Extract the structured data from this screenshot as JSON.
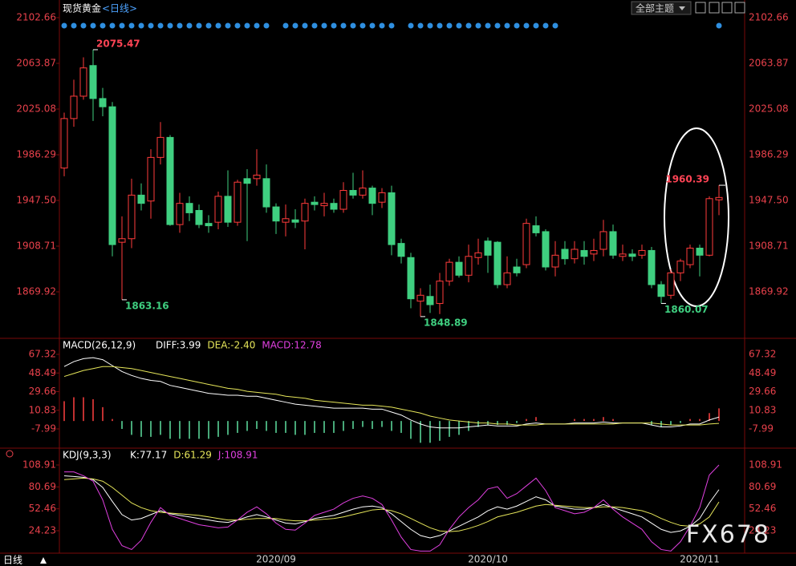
{
  "ui": {
    "theme_button": "全部主题",
    "period_button": "日线",
    "watermark": "FX678"
  },
  "chart_data": [
    {
      "type": "candlestick",
      "title": "现货黄金",
      "period": "<日线>",
      "categories": [
        null,
        null,
        null,
        null,
        null,
        null,
        null,
        null,
        null,
        null,
        null,
        null,
        null,
        null,
        null,
        null,
        null,
        null,
        null,
        null,
        null,
        null,
        "2020/09",
        null,
        null,
        null,
        null,
        null,
        null,
        null,
        null,
        null,
        null,
        null,
        null,
        null,
        null,
        null,
        null,
        null,
        null,
        null,
        null,
        null,
        "2020/10",
        null,
        null,
        null,
        null,
        null,
        null,
        null,
        null,
        null,
        null,
        null,
        null,
        null,
        null,
        null,
        null,
        null,
        null,
        null,
        null,
        null,
        "2020/11",
        null,
        null
      ],
      "open": [
        1975,
        2017,
        2036,
        2062,
        2034,
        2027,
        1912,
        1915,
        1952,
        1947,
        1984,
        2001,
        1927,
        1945,
        1939,
        1928,
        1929,
        1951,
        1929,
        1966,
        1966,
        1966,
        1942,
        1929,
        1931,
        1930,
        1946,
        1943,
        1945,
        1940,
        1956,
        1952,
        1958,
        1946,
        1954,
        1911,
        1899,
        1862,
        1866,
        1860,
        1879,
        1895,
        1884,
        1899,
        1913,
        1912,
        1876,
        1891,
        1893,
        1926,
        1921,
        1891,
        1906,
        1898,
        1905,
        1902,
        1906,
        1921,
        1900,
        1902,
        1901,
        1905,
        1876,
        1867,
        1886,
        1893,
        1907,
        1901,
        1948
      ],
      "high": [
        2022,
        2050,
        2069,
        2075.47,
        2043,
        2031,
        1934,
        1966,
        1962,
        1991,
        2014,
        2003,
        1954,
        1951,
        1944,
        1935,
        1955,
        1973,
        1965,
        1974,
        1991,
        1978,
        1945,
        1944,
        1940,
        1949,
        1951,
        1954,
        1949,
        1963,
        1971,
        1973,
        1960,
        1958,
        1960,
        1915,
        1903,
        1873,
        1876,
        1886,
        1898,
        1900,
        1910,
        1915,
        1916,
        1913,
        1900,
        1898,
        1932,
        1934,
        1923,
        1913,
        1913,
        1913,
        1913,
        1915,
        1931,
        1927,
        1910,
        1906,
        1910,
        1908,
        1879,
        1889,
        1898,
        1910,
        1910,
        1951,
        1960.39
      ],
      "low": [
        1968,
        2010,
        2033,
        2015,
        2019,
        1900,
        1863.16,
        1907,
        1939,
        1932,
        1978,
        1926,
        1920,
        1930,
        1924,
        1920,
        1923,
        1925,
        1926,
        1913,
        1960,
        1937,
        1919,
        1917,
        1924,
        1906,
        1939,
        1934,
        1937,
        1937,
        1949,
        1949,
        1935,
        1941,
        1901,
        1894,
        1856,
        1848.89,
        1852,
        1851,
        1875,
        1882,
        1878,
        1893,
        1886,
        1873,
        1873,
        1883,
        1890,
        1917,
        1888,
        1883,
        1893,
        1894,
        1893,
        1896,
        1900,
        1898,
        1896,
        1896,
        1898,
        1873,
        1860.07,
        1864,
        1879,
        1890,
        1883,
        1900,
        1935
      ],
      "close": [
        2017,
        2036,
        2060,
        2034,
        2027,
        1910,
        1915,
        1952,
        1945,
        1984,
        2001,
        1927,
        1945,
        1937,
        1927,
        1926,
        1951,
        1929,
        1963,
        1962,
        1969,
        1942,
        1930,
        1932,
        1929,
        1945,
        1944,
        1945,
        1940,
        1956,
        1952,
        1958,
        1945,
        1954,
        1910,
        1900,
        1864,
        1867,
        1859,
        1879,
        1895,
        1884,
        1900,
        1903,
        1901,
        1876,
        1886,
        1886,
        1928,
        1920,
        1891,
        1901,
        1898,
        1906,
        1900,
        1905,
        1921,
        1901,
        1902,
        1900,
        1905,
        1876,
        1866,
        1886,
        1896,
        1907,
        1901,
        1949,
        1950
      ],
      "up_color": "#ff3b3b",
      "down_color": "#3fcf80",
      "ylim": [
        1831.8,
        2112.2
      ],
      "yticks": [
        1869.92,
        1908.71,
        {
          "value": 1947.5,
          "label": "1947.50"
        },
        1986.29,
        2025.08,
        2063.87,
        2102.66
      ]
    },
    {
      "type": "macd",
      "title": "MACD(26,12,9)",
      "series": [
        {
          "name": "DIFF:3.99",
          "color": "#ffffff",
          "values": [
            55,
            60,
            63,
            64,
            62,
            56,
            50,
            46,
            43,
            41,
            40,
            36,
            34,
            32,
            30,
            28,
            27,
            26,
            26,
            25,
            25,
            23,
            21,
            19,
            17,
            16,
            15,
            14,
            13,
            13,
            13,
            13,
            12,
            12,
            9,
            6,
            1,
            -3,
            -6,
            -7,
            -7,
            -7,
            -6,
            -5,
            -4,
            -5,
            -5,
            -5,
            -3,
            -2,
            -3,
            -3,
            -3,
            -2,
            -2,
            -2,
            -1,
            -2,
            -2,
            -2,
            -2,
            -4,
            -6,
            -6,
            -5,
            -3,
            -3,
            1,
            3.99
          ]
        },
        {
          "name": "DEA:-2.40",
          "color": "#e6e65a",
          "values": [
            45,
            48,
            51,
            53,
            55,
            55,
            54,
            53,
            51,
            49,
            47,
            45,
            43,
            41,
            39,
            37,
            35,
            33,
            32,
            30,
            29,
            28,
            27,
            25,
            24,
            23,
            21,
            20,
            19,
            18,
            17,
            16,
            16,
            15,
            14,
            12,
            10,
            8,
            5,
            3,
            1,
            0,
            -1,
            -2,
            -2,
            -3,
            -3,
            -4,
            -4,
            -4,
            -3,
            -3,
            -3,
            -3,
            -3,
            -3,
            -3,
            -3,
            -2,
            -2,
            -2,
            -2,
            -3,
            -4,
            -4,
            -4,
            -4,
            -3,
            -2.4
          ]
        },
        {
          "name": "MACD:12.78",
          "type": "bar",
          "color": "#e040e0",
          "up_color": "#ff4040",
          "down_color": "#5fe0a0",
          "values": [
            20,
            24,
            24,
            22,
            14,
            2,
            -8,
            -14,
            -16,
            -16,
            -14,
            -18,
            -18,
            -18,
            -18,
            -18,
            -16,
            -14,
            -12,
            -10,
            -8,
            -10,
            -12,
            -12,
            -14,
            -14,
            -12,
            -12,
            -12,
            -10,
            -8,
            -6,
            -8,
            -6,
            -10,
            -12,
            -18,
            -22,
            -22,
            -20,
            -16,
            -14,
            -10,
            -6,
            -4,
            -4,
            -4,
            -2,
            2,
            4,
            0,
            0,
            0,
            2,
            2,
            2,
            4,
            2,
            0,
            0,
            0,
            -4,
            -6,
            -4,
            -2,
            2,
            2,
            8,
            12.78
          ]
        }
      ],
      "ylim": [
        -25.8,
        81.1
      ],
      "yticks": [
        -7.99,
        10.83,
        29.66,
        48.49,
        67.32
      ]
    },
    {
      "type": "kdj",
      "title": "KDJ(9,3,3)",
      "series": [
        {
          "name": "K:77.17",
          "color": "#ffffff",
          "values": [
            95,
            94,
            93,
            90,
            80,
            62,
            45,
            38,
            40,
            45,
            50,
            46,
            44,
            42,
            40,
            38,
            36,
            35,
            38,
            42,
            45,
            42,
            38,
            34,
            33,
            36,
            40,
            42,
            44,
            48,
            52,
            55,
            56,
            54,
            46,
            36,
            26,
            18,
            15,
            18,
            24,
            30,
            36,
            42,
            50,
            55,
            52,
            56,
            62,
            68,
            64,
            56,
            54,
            52,
            52,
            54,
            58,
            54,
            50,
            46,
            42,
            34,
            26,
            22,
            24,
            30,
            40,
            60,
            77.17
          ]
        },
        {
          "name": "D:61.29",
          "color": "#e6e65a",
          "values": [
            90,
            91,
            92,
            91,
            88,
            80,
            70,
            60,
            54,
            50,
            48,
            47,
            46,
            45,
            44,
            42,
            40,
            38,
            38,
            39,
            40,
            40,
            40,
            38,
            37,
            37,
            38,
            39,
            40,
            42,
            45,
            48,
            51,
            52,
            50,
            46,
            40,
            34,
            28,
            24,
            23,
            24,
            27,
            31,
            36,
            42,
            45,
            48,
            52,
            56,
            58,
            57,
            56,
            55,
            54,
            54,
            55,
            55,
            54,
            52,
            50,
            46,
            40,
            35,
            31,
            30,
            33,
            42,
            61.29
          ]
        },
        {
          "name": "J:108.91",
          "color": "#e040e0",
          "values": [
            100,
            100,
            95,
            88,
            64,
            26,
            5,
            0,
            12,
            35,
            54,
            44,
            40,
            36,
            32,
            30,
            28,
            29,
            38,
            48,
            55,
            46,
            34,
            26,
            25,
            34,
            44,
            48,
            52,
            60,
            66,
            69,
            66,
            58,
            38,
            16,
            0,
            -2,
            -2,
            6,
            26,
            42,
            54,
            64,
            78,
            81,
            66,
            72,
            82,
            92,
            76,
            54,
            50,
            46,
            48,
            54,
            64,
            52,
            42,
            34,
            26,
            10,
            0,
            -2,
            10,
            30,
            54,
            96,
            108.91
          ]
        }
      ],
      "ylim": [
        -4.7,
        127.5
      ],
      "yticks": [
        24.23,
        52.46,
        80.69,
        108.91
      ]
    }
  ]
}
